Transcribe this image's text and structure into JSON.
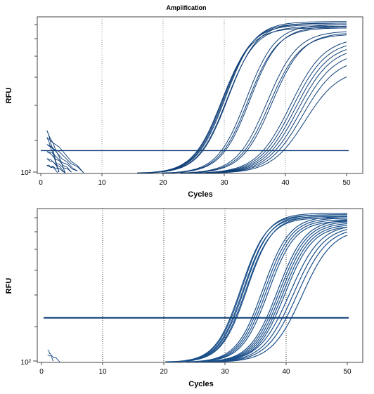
{
  "chart_data": [
    {
      "type": "line",
      "title": "Amplification",
      "xlabel": "Cycles",
      "ylabel": "RFU",
      "xlim": [
        0,
        52
      ],
      "yscale": "log",
      "ytick_labels": [
        "10²"
      ],
      "xticks": [
        0,
        10,
        20,
        30,
        40,
        50
      ],
      "xtick_labels": [
        "0",
        "10",
        "20",
        "30",
        "40",
        "50"
      ],
      "threshold_fraction": 0.146,
      "curve_color": "#0f3f78",
      "gridlines": "dotted vertical at 10, 20, 30, 40",
      "curve_groups": [
        {
          "midpoints": [
            29.6,
            29.8,
            30.0,
            30.2,
            30.4,
            30.6
          ],
          "upper": [
            0.93,
            0.95,
            0.96,
            0.97,
            0.94,
            0.96
          ],
          "steepness": 0.42
        },
        {
          "midpoints": [
            33.6,
            33.9,
            34.2
          ],
          "upper": [
            0.95,
            0.93,
            0.94
          ],
          "steepness": 0.42
        },
        {
          "midpoints": [
            37.0,
            37.4,
            37.8
          ],
          "upper": [
            0.91,
            0.89,
            0.9
          ],
          "steepness": 0.4
        },
        {
          "midpoints": [
            40.8,
            41.2,
            41.6,
            42.0,
            42.4,
            42.8,
            43.2
          ],
          "upper": [
            0.87,
            0.85,
            0.83,
            0.81,
            0.78,
            0.74,
            0.67
          ],
          "steepness": 0.36
        }
      ]
    },
    {
      "type": "line",
      "title": "",
      "xlabel": "Cycles",
      "ylabel": "RFU",
      "xlim": [
        0,
        52
      ],
      "yscale": "log",
      "ytick_labels": [
        "10²"
      ],
      "xticks": [
        0,
        10,
        20,
        30,
        40,
        50
      ],
      "xtick_labels": [
        "0",
        "10",
        "20",
        "30",
        "40",
        "50"
      ],
      "threshold_fraction": 0.29,
      "curve_color": "#1a4f8a",
      "gridlines": "dotted vertical at 10, 20, 30, 40",
      "curve_groups": [
        {
          "midpoints": [
            32.6,
            32.8,
            33.0,
            33.2,
            33.4,
            33.6
          ],
          "upper": [
            0.96,
            0.97,
            0.95,
            0.96,
            0.94,
            0.95
          ],
          "steepness": 0.48
        },
        {
          "midpoints": [
            36.2,
            36.5,
            36.8,
            37.1
          ],
          "upper": [
            0.95,
            0.94,
            0.93,
            0.92
          ],
          "steepness": 0.46
        },
        {
          "midpoints": [
            38.6,
            38.9,
            39.2,
            39.5,
            39.8
          ],
          "upper": [
            0.93,
            0.92,
            0.91,
            0.9,
            0.89
          ],
          "steepness": 0.44
        },
        {
          "midpoints": [
            40.6,
            41.2,
            41.8,
            42.6
          ],
          "upper": [
            0.9,
            0.89,
            0.88,
            0.87
          ],
          "steepness": 0.4
        }
      ]
    }
  ]
}
